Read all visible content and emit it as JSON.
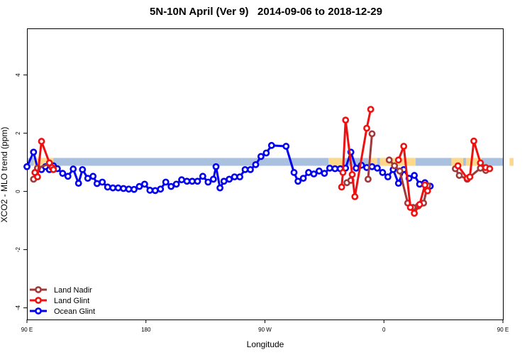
{
  "chart_data": {
    "type": "line",
    "title": "5N-10N April (Ver 9)   2014-09-06 to 2018-12-29",
    "xlabel": "Longitude",
    "ylabel": "XCO2 - MLO trend (ppm)",
    "xlim": [
      90,
      450
    ],
    "ylim": [
      -4.4,
      5.6
    ],
    "x_ticks": [
      {
        "value": 90,
        "label": "90 E"
      },
      {
        "value": 180,
        "label": "180"
      },
      {
        "value": 270,
        "label": "90 W"
      },
      {
        "value": 360,
        "label": "0"
      },
      {
        "value": 450,
        "label": "90 E"
      },
      {
        "value": 540,
        "label": "180"
      }
    ],
    "y_ticks": [
      {
        "value": -4,
        "label": "-4"
      },
      {
        "value": -2,
        "label": "-2"
      },
      {
        "value": 0,
        "label": "0"
      },
      {
        "value": 2,
        "label": "2"
      },
      {
        "value": 4,
        "label": "4"
      }
    ],
    "grid": false,
    "legend_position": "bottom-left",
    "band": {
      "y_low": 0.88,
      "y_high": 1.15,
      "ocean_color": "#a9c0df",
      "land_color": "#fdd88a"
    },
    "land_spans": [
      [
        95,
        110
      ],
      [
        318,
        330
      ],
      [
        348,
        355
      ],
      [
        357,
        384
      ],
      [
        411,
        420
      ],
      [
        422,
        434
      ],
      [
        455,
        458
      ]
    ],
    "series": [
      {
        "name": "Land Nadir",
        "color": "#a03a3a",
        "points": [
          [
            95,
            0.42
          ],
          [
            98,
            0.8
          ],
          [
            107,
            0.95
          ],
          [
            110,
            0.78
          ],
          [
            332,
            0.3
          ],
          [
            335,
            0.38
          ],
          [
            348,
            0.42
          ],
          [
            351,
            1.98
          ],
          [
            364,
            1.08
          ],
          [
            368,
            0.88
          ],
          [
            372,
            0.7
          ],
          [
            378,
            -0.4
          ],
          [
            382,
            -0.55
          ],
          [
            386,
            -0.5
          ],
          [
            390,
            -0.4
          ],
          [
            393,
            0.2
          ],
          [
            414,
            0.78
          ],
          [
            417,
            0.55
          ],
          [
            423,
            0.42
          ],
          [
            433,
            0.8
          ],
          [
            437,
            0.72
          ]
        ]
      },
      {
        "name": "Land Glint",
        "color": "#ee1111",
        "points": [
          [
            96,
            0.65
          ],
          [
            98,
            0.5
          ],
          [
            101,
            1.72
          ],
          [
            107,
            0.98
          ],
          [
            109,
            0.82
          ],
          [
            110,
            0.75
          ],
          [
            328,
            0.15
          ],
          [
            329,
            0.65
          ],
          [
            331,
            2.45
          ],
          [
            336,
            0.58
          ],
          [
            338,
            -0.18
          ],
          [
            347,
            2.17
          ],
          [
            350,
            2.82
          ],
          [
            371,
            1.08
          ],
          [
            375,
            1.55
          ],
          [
            380,
            -0.55
          ],
          [
            383,
            -0.75
          ],
          [
            387,
            -0.45
          ],
          [
            391,
            0.22
          ],
          [
            393,
            0.02
          ],
          [
            416,
            0.88
          ],
          [
            423,
            0.45
          ],
          [
            425,
            0.5
          ],
          [
            428,
            1.73
          ],
          [
            433,
            0.98
          ],
          [
            437,
            0.82
          ],
          [
            440,
            0.78
          ]
        ]
      },
      {
        "name": "Ocean Glint",
        "color": "#0000ee",
        "points": [
          [
            90,
            0.85
          ],
          [
            95,
            1.35
          ],
          [
            98,
            0.8
          ],
          [
            101,
            0.75
          ],
          [
            104,
            0.85
          ],
          [
            107,
            0.75
          ],
          [
            110,
            0.88
          ],
          [
            113,
            0.78
          ],
          [
            117,
            0.62
          ],
          [
            121,
            0.52
          ],
          [
            125,
            0.77
          ],
          [
            129,
            0.28
          ],
          [
            132,
            0.75
          ],
          [
            136,
            0.45
          ],
          [
            140,
            0.52
          ],
          [
            143,
            0.27
          ],
          [
            147,
            0.32
          ],
          [
            151,
            0.15
          ],
          [
            155,
            0.12
          ],
          [
            159,
            0.12
          ],
          [
            163,
            0.1
          ],
          [
            167,
            0.08
          ],
          [
            171,
            0.07
          ],
          [
            175,
            0.17
          ],
          [
            179,
            0.25
          ],
          [
            183,
            0.04
          ],
          [
            187,
            0.03
          ],
          [
            191,
            0.08
          ],
          [
            195,
            0.32
          ],
          [
            199,
            0.17
          ],
          [
            203,
            0.25
          ],
          [
            207,
            0.4
          ],
          [
            211,
            0.35
          ],
          [
            215,
            0.35
          ],
          [
            219,
            0.35
          ],
          [
            223,
            0.52
          ],
          [
            227,
            0.32
          ],
          [
            231,
            0.42
          ],
          [
            233,
            0.85
          ],
          [
            236,
            0.12
          ],
          [
            239,
            0.35
          ],
          [
            243,
            0.42
          ],
          [
            247,
            0.5
          ],
          [
            251,
            0.5
          ],
          [
            255,
            0.75
          ],
          [
            259,
            0.75
          ],
          [
            263,
            0.92
          ],
          [
            267,
            1.2
          ],
          [
            271,
            1.32
          ],
          [
            275,
            1.58
          ],
          [
            286,
            1.55
          ],
          [
            292,
            0.65
          ],
          [
            295,
            0.35
          ],
          [
            299,
            0.45
          ],
          [
            303,
            0.65
          ],
          [
            307,
            0.6
          ],
          [
            311,
            0.7
          ],
          [
            315,
            0.62
          ],
          [
            319,
            0.8
          ],
          [
            323,
            0.78
          ],
          [
            327,
            0.78
          ],
          [
            331,
            0.8
          ],
          [
            335,
            1.35
          ],
          [
            339,
            0.8
          ],
          [
            343,
            0.9
          ],
          [
            347,
            0.82
          ],
          [
            351,
            0.85
          ],
          [
            355,
            0.8
          ],
          [
            359,
            0.65
          ],
          [
            363,
            0.5
          ],
          [
            367,
            0.75
          ],
          [
            371,
            0.28
          ],
          [
            375,
            0.75
          ],
          [
            379,
            0.45
          ],
          [
            383,
            0.55
          ],
          [
            387,
            0.25
          ],
          [
            391,
            0.3
          ],
          [
            395,
            0.18
          ]
        ]
      }
    ]
  }
}
